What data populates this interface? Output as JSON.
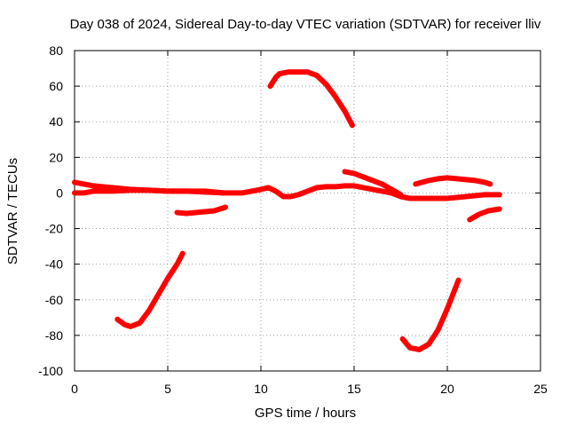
{
  "chart_data": {
    "type": "line",
    "title": "Day 038 of 2024, Sidereal Day-to-day VTEC variation (SDTVAR) for receiver lliv",
    "xlabel": "GPS time / hours",
    "ylabel": "SDTVAR / TECUs",
    "xlim": [
      0,
      25
    ],
    "ylim": [
      -100,
      80
    ],
    "xticks": [
      0,
      5,
      10,
      15,
      20,
      25
    ],
    "yticks": [
      -100,
      -80,
      -60,
      -40,
      -20,
      0,
      20,
      40,
      60,
      80
    ],
    "xtick_labels": [
      "0",
      "5",
      "10",
      "15",
      "20",
      "25"
    ],
    "ytick_labels": [
      "-100",
      "-80",
      "-60",
      "-40",
      "-20",
      "0",
      "20",
      "40",
      "60",
      "80"
    ],
    "grid": true,
    "color": "#ff0000",
    "series": [
      {
        "name": "arc-1",
        "x": [
          0,
          0.5,
          1,
          2,
          3,
          4,
          5,
          6,
          7,
          8,
          9,
          10,
          10.4,
          10.8,
          11.2,
          11.6,
          12,
          12.5,
          13,
          13.5,
          14,
          14.5,
          15,
          15.5,
          16,
          16.5,
          17,
          17.5,
          18,
          19,
          20,
          21,
          22,
          22.8
        ],
        "y": [
          0,
          0,
          1,
          1,
          1.5,
          1.5,
          1,
          1,
          1,
          0,
          0,
          2,
          3,
          1,
          -2,
          -2,
          -1,
          1,
          3,
          3.5,
          3.5,
          4,
          4,
          3,
          2,
          1,
          0,
          -2,
          -3,
          -3,
          -3,
          -2,
          -1,
          -1
        ]
      },
      {
        "name": "arc-2",
        "x": [
          0,
          0.5,
          1,
          2,
          3,
          4,
          5,
          6,
          7,
          8
        ],
        "y": [
          6,
          5,
          4,
          3,
          2,
          1.5,
          1,
          1,
          0.5,
          0
        ]
      },
      {
        "name": "arc-3",
        "x": [
          14.5,
          15,
          15.5,
          16,
          16.5,
          17,
          17.5
        ],
        "y": [
          12,
          11,
          9,
          7,
          5,
          2,
          -1
        ]
      },
      {
        "name": "arc-4",
        "x": [
          18.3,
          19,
          19.5,
          20,
          20.5,
          21,
          21.5,
          22,
          22.3
        ],
        "y": [
          5,
          7,
          8,
          8.5,
          8,
          7.5,
          7,
          6,
          5
        ]
      },
      {
        "name": "arc-5",
        "x": [
          5.5,
          6,
          6.5,
          7,
          7.5,
          8.1
        ],
        "y": [
          -11,
          -11.5,
          -11,
          -10.5,
          -10,
          -8
        ]
      },
      {
        "name": "arc-6",
        "x": [
          21.2,
          21.7,
          22.2,
          22.8
        ],
        "y": [
          -15,
          -12,
          -10,
          -9
        ]
      },
      {
        "name": "arc-7",
        "x": [
          10.5,
          10.8,
          11,
          11.5,
          12,
          12.5,
          13,
          13.5,
          14,
          14.5,
          14.9
        ],
        "y": [
          60,
          65,
          67,
          68,
          68,
          68,
          66,
          61,
          54,
          46,
          38
        ]
      },
      {
        "name": "arc-8",
        "x": [
          2.3,
          2.7,
          3,
          3.5,
          4,
          4.5,
          5,
          5.5,
          5.8
        ],
        "y": [
          -71,
          -74,
          -75,
          -73,
          -66,
          -57,
          -48,
          -40,
          -34
        ]
      },
      {
        "name": "arc-9",
        "x": [
          17.6,
          18,
          18.5,
          19,
          19.5,
          20,
          20.6
        ],
        "y": [
          -82,
          -87,
          -88,
          -85,
          -77,
          -65,
          -49
        ]
      }
    ]
  }
}
